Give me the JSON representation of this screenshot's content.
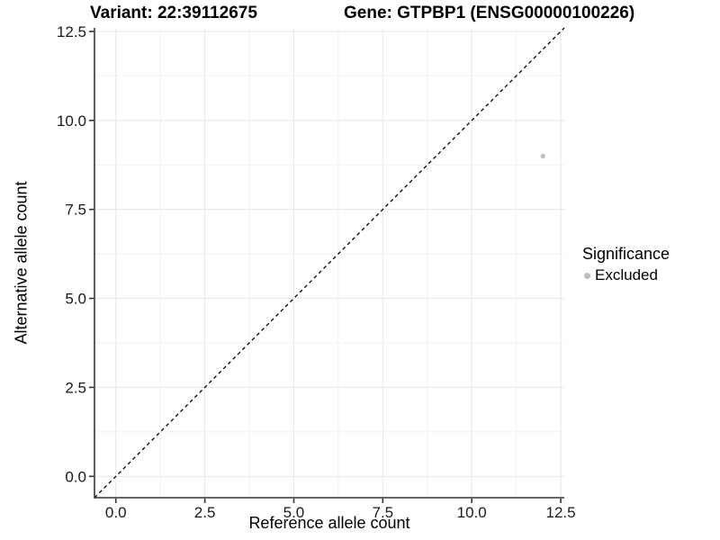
{
  "chart_data": {
    "type": "scatter",
    "title_left": "Variant: 22:39112675",
    "title_right": "Gene: GTPBP1 (ENSG00000100226)",
    "xlabel": "Reference allele count",
    "ylabel": "Alternative allele count",
    "xlim": [
      -0.6,
      12.6
    ],
    "ylim": [
      -0.6,
      12.6
    ],
    "x_ticks": {
      "values": [
        0,
        2.5,
        5,
        7.5,
        10,
        12.5
      ],
      "labels": [
        "0.0",
        "2.5",
        "5.0",
        "7.5",
        "10.0",
        "12.5"
      ]
    },
    "y_ticks": {
      "values": [
        0,
        2.5,
        5,
        7.5,
        10,
        12.5
      ],
      "labels": [
        "0.0",
        "2.5",
        "5.0",
        "7.5",
        "10.0",
        "12.5"
      ]
    },
    "minor_gridlines": [
      1.25,
      3.75,
      6.25,
      8.75,
      11.25
    ],
    "grid": true,
    "reference_line": {
      "style": "dashed",
      "slope": 1,
      "intercept": 0,
      "color": "#000000"
    },
    "series": [
      {
        "name": "Excluded",
        "color": "#bebebe",
        "points": [
          {
            "x": 12,
            "y": 9
          }
        ]
      }
    ],
    "legend": {
      "title": "Significance",
      "position": "right",
      "entries": [
        {
          "label": "Excluded",
          "color": "#bebebe"
        }
      ]
    }
  },
  "colors": {
    "background": "#ffffff",
    "axis_line": "#333333",
    "tick_mark": "#333333",
    "tick_label": "#1a1a1a",
    "grid_major": "#e7e7e7",
    "grid_minor": "#f2f2f2",
    "point": "#bebebe",
    "text": "#000000"
  }
}
